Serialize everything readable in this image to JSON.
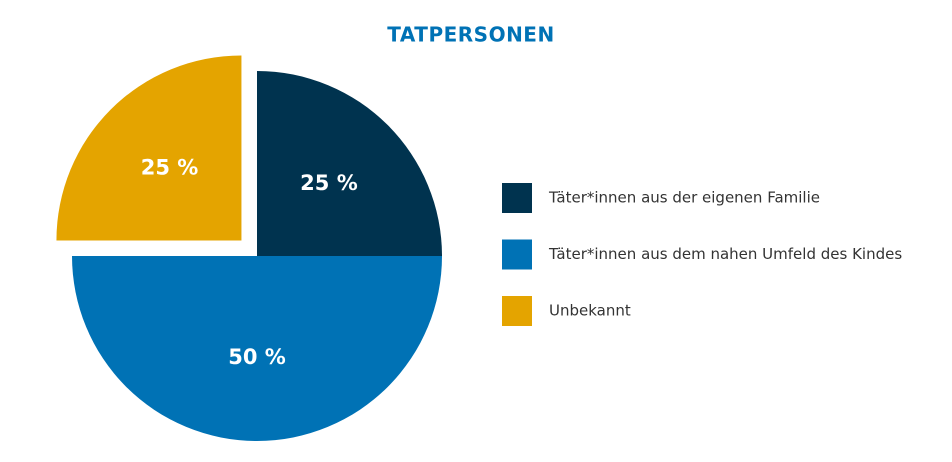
{
  "chart_data": {
    "type": "pie",
    "title": "TATPERSONEN",
    "categories": [
      "Täter*innen aus der eigenen Familie",
      "Täter*innen aus dem nahen Umfeld des Kindes",
      "Unbekannt"
    ],
    "values": [
      25,
      50,
      25
    ],
    "value_labels": [
      "25 %",
      "50 %",
      "25 %"
    ],
    "colors": [
      "#00334f",
      "#0072b5",
      "#e4a400"
    ],
    "exploded": [
      false,
      false,
      true
    ]
  }
}
